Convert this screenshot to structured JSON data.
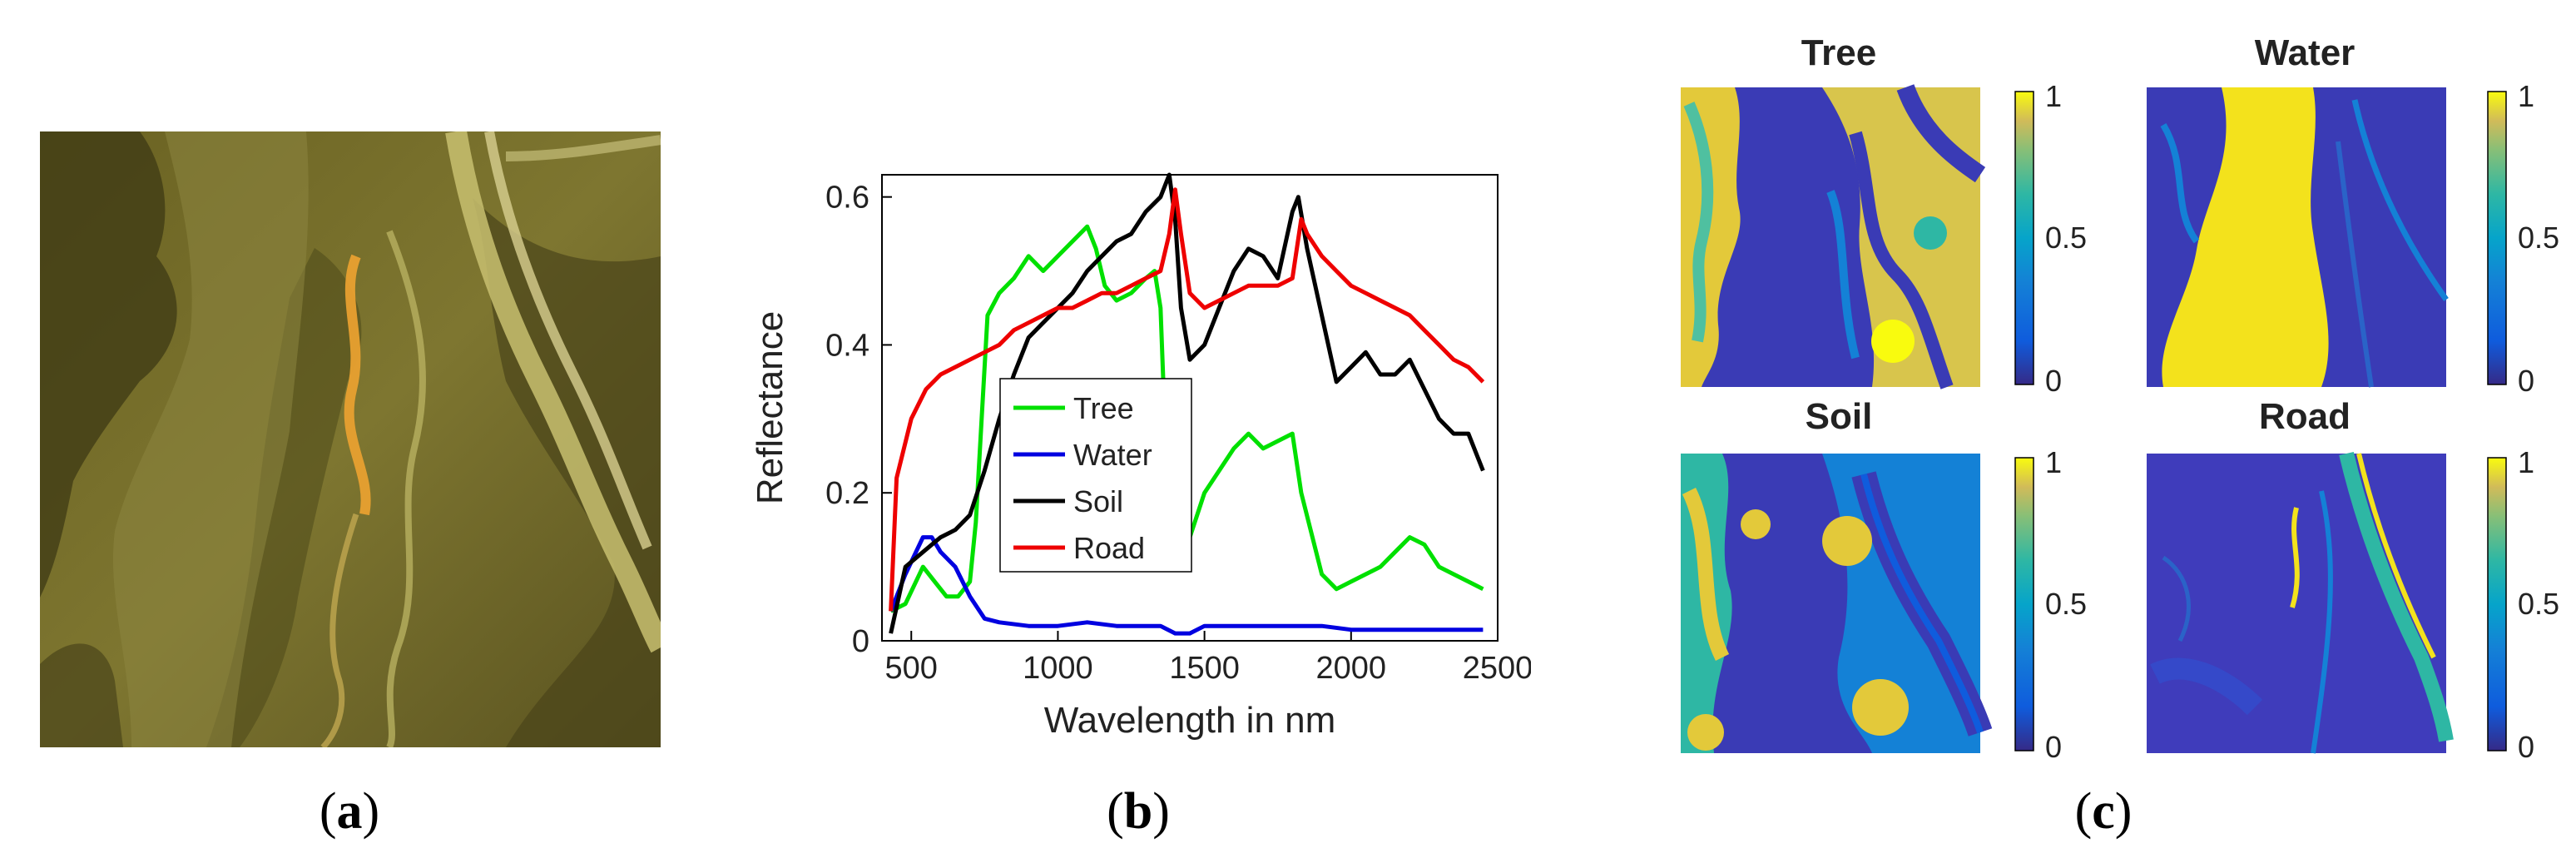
{
  "captions": {
    "a": "a",
    "b": "b",
    "c": "c"
  },
  "panel_a": {
    "content": "true-color aerial scene: river valley with bright road curves"
  },
  "chart_data": [
    {
      "type": "line",
      "title": "",
      "xlabel": "Wavelength in nm",
      "ylabel": "Reflectance",
      "xlim": [
        400,
        2500
      ],
      "ylim": [
        0,
        0.63
      ],
      "xticks": [
        500,
        1000,
        1500,
        2000,
        2500
      ],
      "yticks": [
        0,
        0.2,
        0.4,
        0.6
      ],
      "ytick_labels": [
        "0",
        "0.2",
        "0.4",
        "0.6"
      ],
      "legend_position": "center-left",
      "series": [
        {
          "name": "Tree",
          "color": "#00e000",
          "x": [
            430,
            480,
            540,
            580,
            620,
            660,
            700,
            720,
            740,
            760,
            800,
            850,
            900,
            950,
            1000,
            1050,
            1100,
            1130,
            1160,
            1200,
            1250,
            1300,
            1330,
            1350,
            1370,
            1400,
            1450,
            1500,
            1600,
            1650,
            1700,
            1750,
            1800,
            1830,
            1900,
            1950,
            2000,
            2050,
            2100,
            2150,
            2200,
            2250,
            2300,
            2350,
            2400,
            2450
          ],
          "y": [
            0.04,
            0.05,
            0.1,
            0.08,
            0.06,
            0.06,
            0.08,
            0.16,
            0.3,
            0.44,
            0.47,
            0.49,
            0.52,
            0.5,
            0.52,
            0.54,
            0.56,
            0.53,
            0.48,
            0.46,
            0.47,
            0.49,
            0.5,
            0.45,
            0.24,
            0.14,
            0.14,
            0.2,
            0.26,
            0.28,
            0.26,
            0.27,
            0.28,
            0.2,
            0.09,
            0.07,
            0.08,
            0.09,
            0.1,
            0.12,
            0.14,
            0.13,
            0.1,
            0.09,
            0.08,
            0.07
          ]
        },
        {
          "name": "Water",
          "color": "#0000e0",
          "x": [
            430,
            480,
            540,
            570,
            600,
            650,
            700,
            750,
            800,
            900,
            1000,
            1100,
            1200,
            1300,
            1350,
            1400,
            1450,
            1500,
            1600,
            1700,
            1800,
            1850,
            1900,
            2000,
            2100,
            2200,
            2300,
            2400,
            2450
          ],
          "y": [
            0.04,
            0.09,
            0.14,
            0.14,
            0.12,
            0.1,
            0.06,
            0.03,
            0.025,
            0.02,
            0.02,
            0.025,
            0.02,
            0.02,
            0.02,
            0.01,
            0.01,
            0.02,
            0.02,
            0.02,
            0.02,
            0.02,
            0.02,
            0.015,
            0.015,
            0.015,
            0.015,
            0.015,
            0.015
          ]
        },
        {
          "name": "Soil",
          "color": "#000000",
          "x": [
            430,
            480,
            540,
            600,
            650,
            700,
            750,
            800,
            850,
            900,
            950,
            1000,
            1050,
            1100,
            1150,
            1200,
            1250,
            1300,
            1350,
            1380,
            1400,
            1420,
            1450,
            1500,
            1550,
            1600,
            1650,
            1700,
            1750,
            1800,
            1820,
            1850,
            1900,
            1950,
            2000,
            2050,
            2100,
            2150,
            2200,
            2250,
            2300,
            2350,
            2400,
            2450
          ],
          "y": [
            0.01,
            0.1,
            0.12,
            0.14,
            0.15,
            0.17,
            0.23,
            0.3,
            0.36,
            0.41,
            0.43,
            0.45,
            0.47,
            0.5,
            0.52,
            0.54,
            0.55,
            0.58,
            0.6,
            0.63,
            0.57,
            0.45,
            0.38,
            0.4,
            0.45,
            0.5,
            0.53,
            0.52,
            0.49,
            0.58,
            0.6,
            0.53,
            0.44,
            0.35,
            0.37,
            0.39,
            0.36,
            0.36,
            0.38,
            0.34,
            0.3,
            0.28,
            0.28,
            0.23
          ]
        },
        {
          "name": "Road",
          "color": "#ee0000",
          "x": [
            430,
            450,
            500,
            550,
            600,
            650,
            700,
            750,
            800,
            850,
            900,
            950,
            1000,
            1050,
            1100,
            1150,
            1200,
            1250,
            1300,
            1350,
            1380,
            1400,
            1420,
            1450,
            1500,
            1550,
            1600,
            1650,
            1700,
            1750,
            1800,
            1830,
            1850,
            1900,
            1950,
            2000,
            2050,
            2100,
            2150,
            2200,
            2250,
            2300,
            2350,
            2400,
            2450
          ],
          "y": [
            0.04,
            0.22,
            0.3,
            0.34,
            0.36,
            0.37,
            0.38,
            0.39,
            0.4,
            0.42,
            0.43,
            0.44,
            0.45,
            0.45,
            0.46,
            0.47,
            0.47,
            0.48,
            0.49,
            0.5,
            0.55,
            0.61,
            0.55,
            0.47,
            0.45,
            0.46,
            0.47,
            0.48,
            0.48,
            0.48,
            0.49,
            0.57,
            0.55,
            0.52,
            0.5,
            0.48,
            0.47,
            0.46,
            0.45,
            0.44,
            0.42,
            0.4,
            0.38,
            0.37,
            0.35
          ]
        }
      ]
    },
    {
      "type": "heatmap",
      "title": "Tree",
      "colorbar_ticks": [
        "1",
        "0.5",
        "0"
      ],
      "clim": [
        0,
        1
      ]
    },
    {
      "type": "heatmap",
      "title": "Water",
      "colorbar_ticks": [
        "1",
        "0.5",
        "0"
      ],
      "clim": [
        0,
        1
      ]
    },
    {
      "type": "heatmap",
      "title": "Soil",
      "colorbar_ticks": [
        "1",
        "0.5",
        "0"
      ],
      "clim": [
        0,
        1
      ]
    },
    {
      "type": "heatmap",
      "title": "Road",
      "colorbar_ticks": [
        "1",
        "0.5",
        "0"
      ],
      "clim": [
        0,
        1
      ]
    }
  ]
}
